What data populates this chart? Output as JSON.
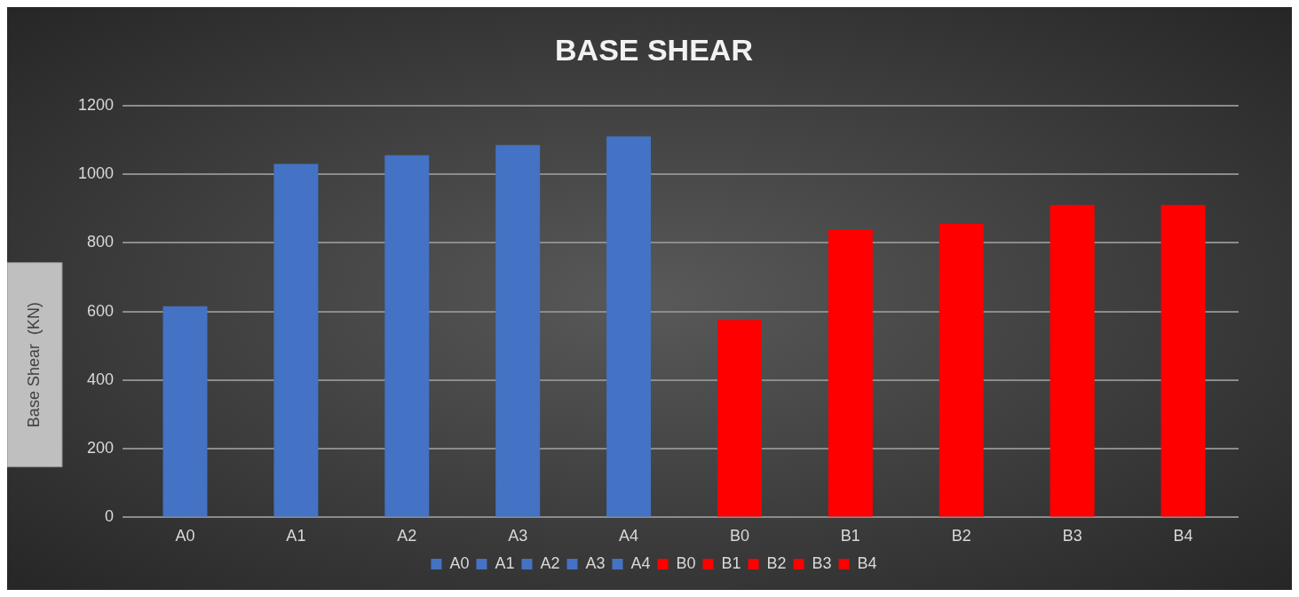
{
  "chart_data": {
    "type": "bar",
    "title": "BASE SHEAR",
    "ylabel": "Base Shear  (KN)",
    "categories": [
      "A0",
      "A1",
      "A2",
      "A3",
      "A4",
      "B0",
      "B1",
      "B2",
      "B3",
      "B4"
    ],
    "series": [
      {
        "name": "A0",
        "color": "#4472c4",
        "values": [
          615,
          null,
          null,
          null,
          null,
          null,
          null,
          null,
          null,
          null
        ]
      },
      {
        "name": "A1",
        "color": "#4472c4",
        "values": [
          null,
          1030,
          null,
          null,
          null,
          null,
          null,
          null,
          null,
          null
        ]
      },
      {
        "name": "A2",
        "color": "#4472c4",
        "values": [
          null,
          null,
          1055,
          null,
          null,
          null,
          null,
          null,
          null,
          null
        ]
      },
      {
        "name": "A3",
        "color": "#4472c4",
        "values": [
          null,
          null,
          null,
          1085,
          null,
          null,
          null,
          null,
          null,
          null
        ]
      },
      {
        "name": "A4",
        "color": "#4472c4",
        "values": [
          null,
          null,
          null,
          null,
          1110,
          null,
          null,
          null,
          null,
          null
        ]
      },
      {
        "name": "B0",
        "color": "#ff0000",
        "values": [
          null,
          null,
          null,
          null,
          null,
          575,
          null,
          null,
          null,
          null
        ]
      },
      {
        "name": "B1",
        "color": "#ff0000",
        "values": [
          null,
          null,
          null,
          null,
          null,
          null,
          840,
          null,
          null,
          null
        ]
      },
      {
        "name": "B2",
        "color": "#ff0000",
        "values": [
          null,
          null,
          null,
          null,
          null,
          null,
          null,
          855,
          null,
          null
        ]
      },
      {
        "name": "B3",
        "color": "#ff0000",
        "values": [
          null,
          null,
          null,
          null,
          null,
          null,
          null,
          null,
          910,
          null
        ]
      },
      {
        "name": "B4",
        "color": "#ff0000",
        "values": [
          null,
          null,
          null,
          null,
          null,
          null,
          null,
          null,
          null,
          910
        ]
      }
    ],
    "ylim": [
      0,
      1200
    ],
    "yticks": [
      0,
      200,
      400,
      600,
      800,
      1000,
      1200
    ],
    "grid": "y",
    "legend": "bottom"
  }
}
